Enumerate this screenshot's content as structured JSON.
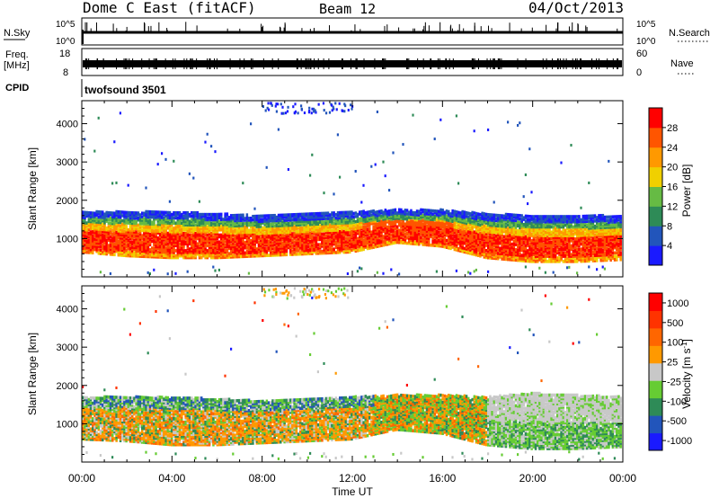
{
  "header": {
    "station": "Dome C East (fitACF)",
    "beam": "Beam 12",
    "date": "04/Oct/2013"
  },
  "nsky_panel": {
    "label": "N.Sky",
    "right_label": "N.Search",
    "ticks_left": [
      "10^5",
      "10^0"
    ],
    "ticks_right": [
      "10^5",
      "10^0"
    ]
  },
  "freq_panel": {
    "label_line1": "Freq.",
    "label_line2": "[MHz]",
    "right_label": "Nave",
    "ticks_left": [
      "18",
      "8"
    ],
    "ticks_right": [
      "60",
      "0"
    ]
  },
  "cpid": {
    "label": "CPID",
    "value": "twofsound 3501"
  },
  "chart_data": [
    {
      "type": "heatmap",
      "name": "power-panel",
      "ylabel": "Slant Range [km]",
      "ylim": [
        0,
        4600
      ],
      "yticks": [
        1000,
        2000,
        3000,
        4000
      ],
      "xlim": [
        0,
        24
      ],
      "colorbar": {
        "label": "Power [dB]",
        "ticks": [
          "4",
          "8",
          "12",
          "16",
          "20",
          "24",
          "28"
        ],
        "colors": [
          "#1a1aff",
          "#2255bb",
          "#2e8b57",
          "#66bb44",
          "#f0d000",
          "#ff9900",
          "#ff5500",
          "#ff0000"
        ]
      },
      "echo_band": [
        {
          "t": 0,
          "low": 650,
          "high": 1700
        },
        {
          "t": 2,
          "low": 550,
          "high": 1700
        },
        {
          "t": 4,
          "low": 500,
          "high": 1700
        },
        {
          "t": 6,
          "low": 500,
          "high": 1650
        },
        {
          "t": 8,
          "low": 550,
          "high": 1600
        },
        {
          "t": 10,
          "low": 600,
          "high": 1650
        },
        {
          "t": 12,
          "low": 650,
          "high": 1700
        },
        {
          "t": 14,
          "low": 900,
          "high": 1750
        },
        {
          "t": 16,
          "low": 800,
          "high": 1750
        },
        {
          "t": 18,
          "low": 500,
          "high": 1650
        },
        {
          "t": 20,
          "low": 400,
          "high": 1600
        },
        {
          "t": 22,
          "low": 400,
          "high": 1600
        },
        {
          "t": 24,
          "low": 450,
          "high": 1600
        }
      ]
    },
    {
      "type": "heatmap",
      "name": "velocity-panel",
      "ylabel": "Slant Range [km]",
      "ylim": [
        0,
        4600
      ],
      "yticks": [
        1000,
        2000,
        3000,
        4000
      ],
      "xlim": [
        0,
        24
      ],
      "xticks": [
        "00:00",
        "04:00",
        "08:00",
        "12:00",
        "16:00",
        "20:00",
        "00:00"
      ],
      "xlabel": "Time UT",
      "colorbar": {
        "label": "Velocity [m s^-1]",
        "ticks": [
          "1000",
          "500",
          "100",
          "25",
          "-25",
          "-100",
          "-500",
          "-1000"
        ],
        "colors": [
          "#1a1aff",
          "#2255bb",
          "#2e8b57",
          "#66cc33",
          "#c8c8c8",
          "#ff9900",
          "#ff6600",
          "#ff3300",
          "#ff0000"
        ]
      },
      "echo_band": [
        {
          "t": 0,
          "low": 600,
          "high": 1700
        },
        {
          "t": 2,
          "low": 550,
          "high": 1700
        },
        {
          "t": 4,
          "low": 450,
          "high": 1700
        },
        {
          "t": 6,
          "low": 450,
          "high": 1650
        },
        {
          "t": 8,
          "low": 500,
          "high": 1600
        },
        {
          "t": 10,
          "low": 550,
          "high": 1650
        },
        {
          "t": 12,
          "low": 600,
          "high": 1700
        },
        {
          "t": 14,
          "low": 850,
          "high": 1750
        },
        {
          "t": 16,
          "low": 750,
          "high": 1750
        },
        {
          "t": 18,
          "low": 450,
          "high": 1700
        },
        {
          "t": 20,
          "low": 350,
          "high": 1800
        },
        {
          "t": 22,
          "low": 350,
          "high": 1750
        },
        {
          "t": 24,
          "low": 400,
          "high": 1700
        }
      ]
    }
  ]
}
